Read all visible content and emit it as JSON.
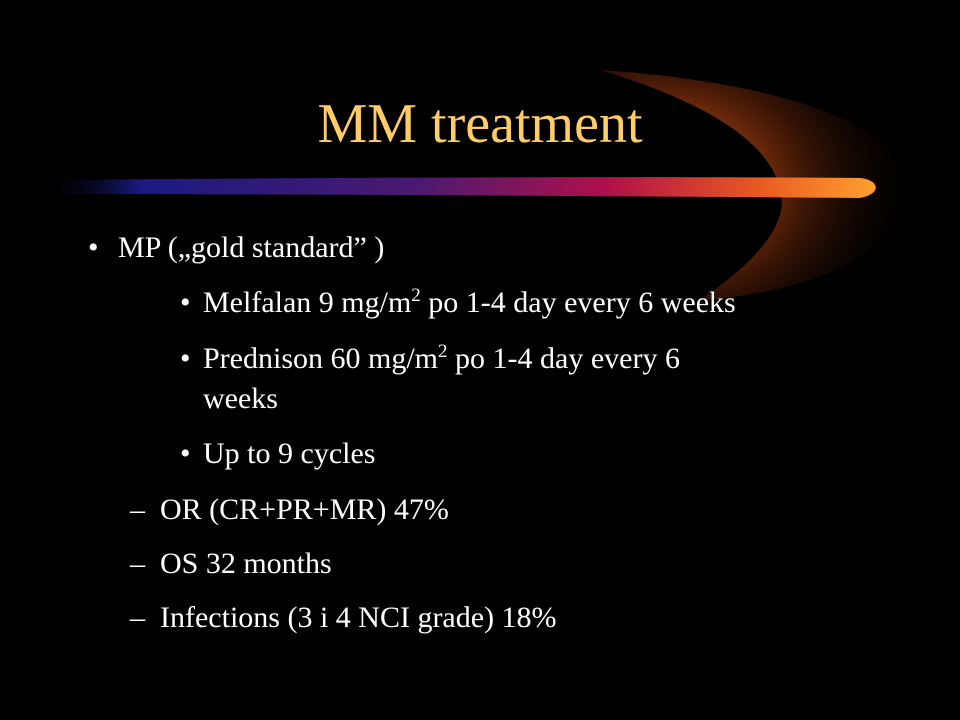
{
  "slide": {
    "title": "MM treatment",
    "colors": {
      "background": "#000000",
      "title": "#ffcc66",
      "text": "#ffffff",
      "swoosh_dark": "#1a1a80",
      "swoosh_mid": "#b0104a",
      "swoosh_bright": "#ffa030"
    },
    "level1": {
      "bullet": "•",
      "text": "MP („gold standard” )"
    },
    "level2": [
      {
        "bullet": "•",
        "before": "Melfalan 9 mg/m",
        "sup": "2",
        "after": " po 1-4 day every 6 weeks"
      },
      {
        "bullet": "•",
        "before": "Prednison 60 mg/m",
        "sup": "2",
        "after": " po 1-4 day every 6",
        "continuation": "weeks"
      },
      {
        "bullet": "•",
        "text": "Up to  9 cycles"
      }
    ],
    "outcomes": [
      {
        "dash": "–",
        "text": "OR (CR+PR+MR) 47%"
      },
      {
        "dash": "–",
        "text": "OS  32 months"
      },
      {
        "dash": "–",
        "text": "Infections (3 i 4 NCI grade) 18%"
      }
    ]
  }
}
